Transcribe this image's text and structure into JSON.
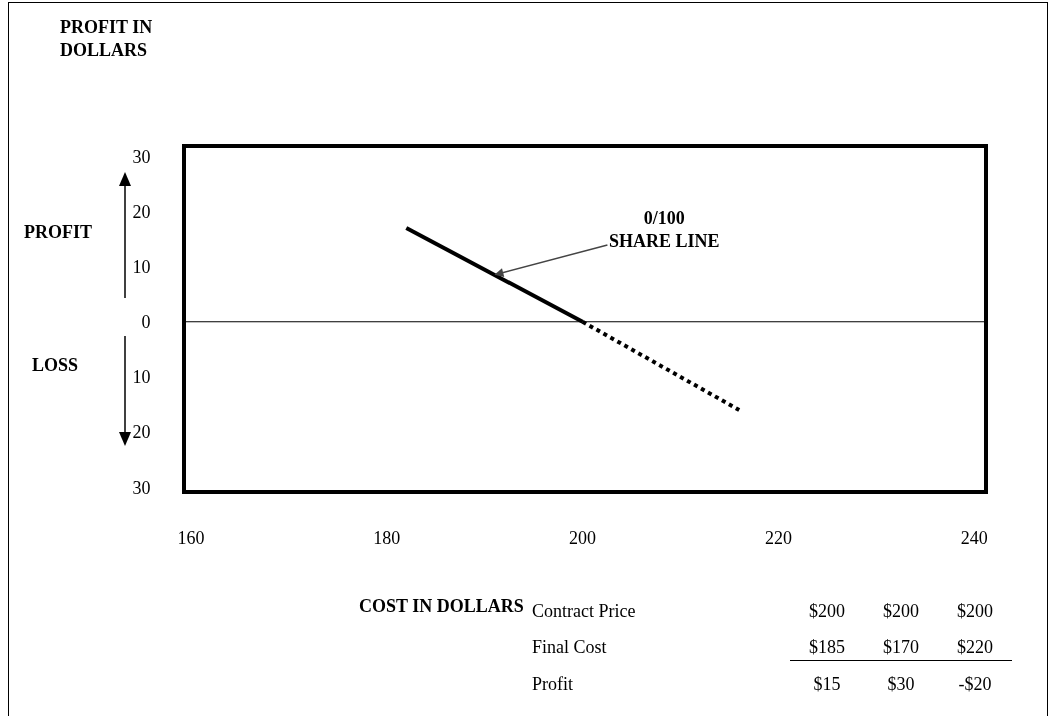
{
  "chart_data": {
    "type": "line",
    "ylabel": "PROFIT IN\nDOLLARS",
    "xlabel": "COST IN DOLLARS",
    "xlim": [
      159.5,
      241
    ],
    "xticks": [
      160,
      180,
      200,
      220,
      240
    ],
    "ylim": [
      -30.5,
      31.5
    ],
    "yticks": [
      {
        "value": -30,
        "label": "30"
      },
      {
        "value": -20,
        "label": "20"
      },
      {
        "value": -10,
        "label": "10"
      },
      {
        "value": 0,
        "label": "0"
      },
      {
        "value": 10,
        "label": "10"
      },
      {
        "value": 20,
        "label": "20"
      },
      {
        "value": 30,
        "label": "30"
      }
    ],
    "grid": false,
    "marker": "none",
    "series": [
      {
        "color": "#000000",
        "line_style": "solid",
        "x": [
          182,
          200
        ],
        "values": [
          17,
          0
        ]
      },
      {
        "color": "#000000",
        "line_style": "dotted",
        "x": [
          200,
          216
        ],
        "values": [
          0,
          -16
        ]
      }
    ],
    "ref_lines": [
      {
        "axis": "y",
        "value": 0,
        "color": "#000000",
        "line_style": "solid"
      }
    ],
    "annotations": [
      {
        "text": "0/100\nSHARE LINE",
        "x": 191,
        "y": 8.5
      },
      "PROFIT",
      "LOSS",
      "Contract Price",
      "$200",
      "$200",
      "$200",
      "Final Cost",
      "$185",
      "$170",
      "$220",
      "Profit",
      "$15",
      "$30",
      "-$20"
    ]
  }
}
